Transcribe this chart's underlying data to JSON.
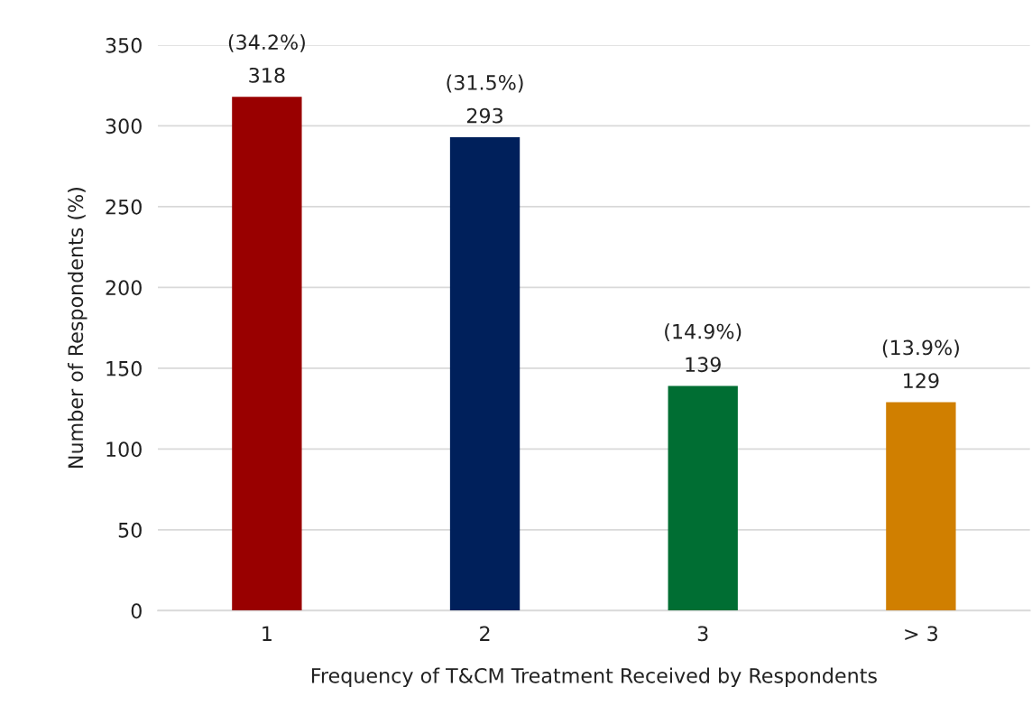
{
  "chart_data": {
    "type": "bar",
    "xlabel": "Frequency of T&CM Treatment Received by Respondents",
    "ylabel": "Number of Respondents (%)",
    "categories": [
      "1",
      "2",
      "3",
      "> 3"
    ],
    "values": [
      318,
      293,
      139,
      129
    ],
    "colors": [
      "#990000",
      "#00205b",
      "#006e33",
      "#d07f00"
    ],
    "value_labels": [
      "(34.2%)\n318",
      "(31.5%)\n293",
      "(14.9%)\n139",
      "(13.9%)\n129"
    ],
    "ylim": [
      0,
      350
    ],
    "yticks": [
      0,
      50,
      100,
      150,
      200,
      250,
      300,
      350
    ],
    "grid": "y",
    "legend": false
  }
}
